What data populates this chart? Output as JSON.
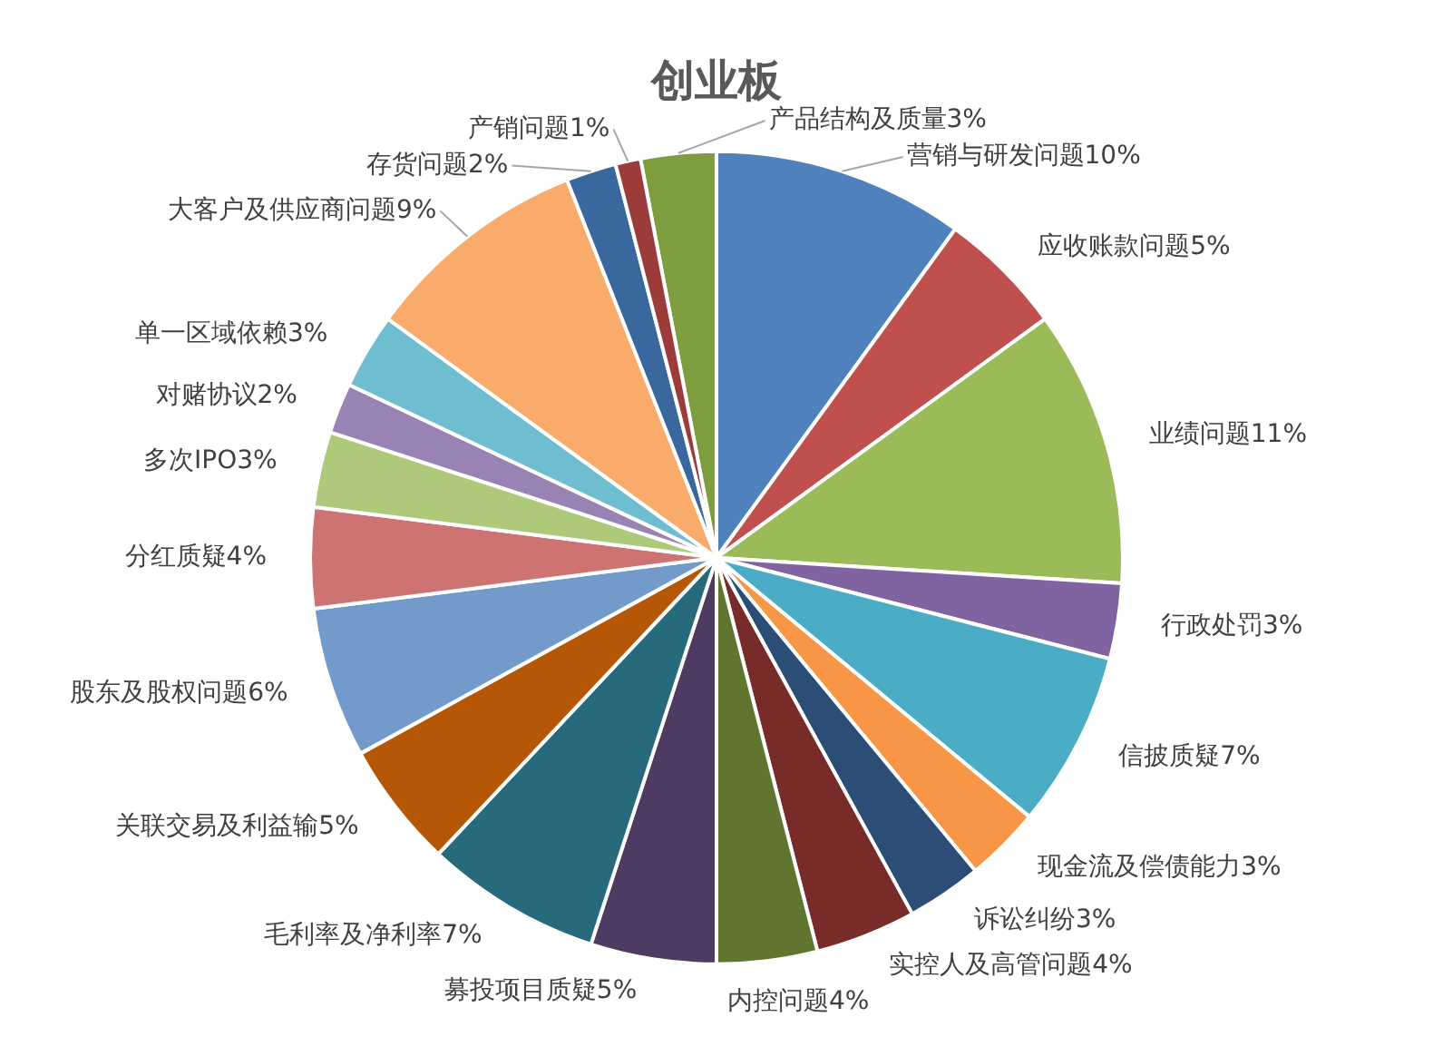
{
  "chart_data": {
    "type": "pie",
    "title": "创业板",
    "categories": [
      "产品结构及质量",
      "营销与研发问题",
      "应收账款问题",
      "业绩问题",
      "行政处罚",
      "信披质疑",
      "现金流及偿债能力",
      "诉讼纠纷",
      "实控人及高管问题",
      "内控问题",
      "募投项目质疑",
      "毛利率及净利率",
      "关联交易及利益输",
      "股东及股权问题",
      "分红质疑",
      "多次IPO",
      "对赌协议",
      "单一区域依赖",
      "大客户及供应商问题",
      "存货问题",
      "产销问题"
    ],
    "values": [
      3,
      10,
      5,
      11,
      3,
      7,
      3,
      3,
      4,
      4,
      5,
      7,
      5,
      6,
      4,
      3,
      2,
      3,
      9,
      2,
      1
    ],
    "value_labels": [
      "3%",
      "10%",
      "5%",
      "11%",
      "3%",
      "7%",
      "3%",
      "3%",
      "4%",
      "4%",
      "5%",
      "7%",
      "5%",
      "6%",
      "4%",
      "3%",
      "2%",
      "3%",
      "9%",
      "2%",
      "1%"
    ],
    "colors": [
      "#7e9d3e",
      "#4f81bd",
      "#c0504d",
      "#9bbb59",
      "#8064a2",
      "#4bacc6",
      "#f79646",
      "#2c4d75",
      "#772c2a",
      "#5f7530",
      "#4d3b62",
      "#276a7c",
      "#b65708",
      "#729aca",
      "#cd7371",
      "#afc97a",
      "#9983b5",
      "#6fbdd1",
      "#f9ab6b",
      "#3a689e",
      "#9c3c3a"
    ],
    "legend": false
  }
}
